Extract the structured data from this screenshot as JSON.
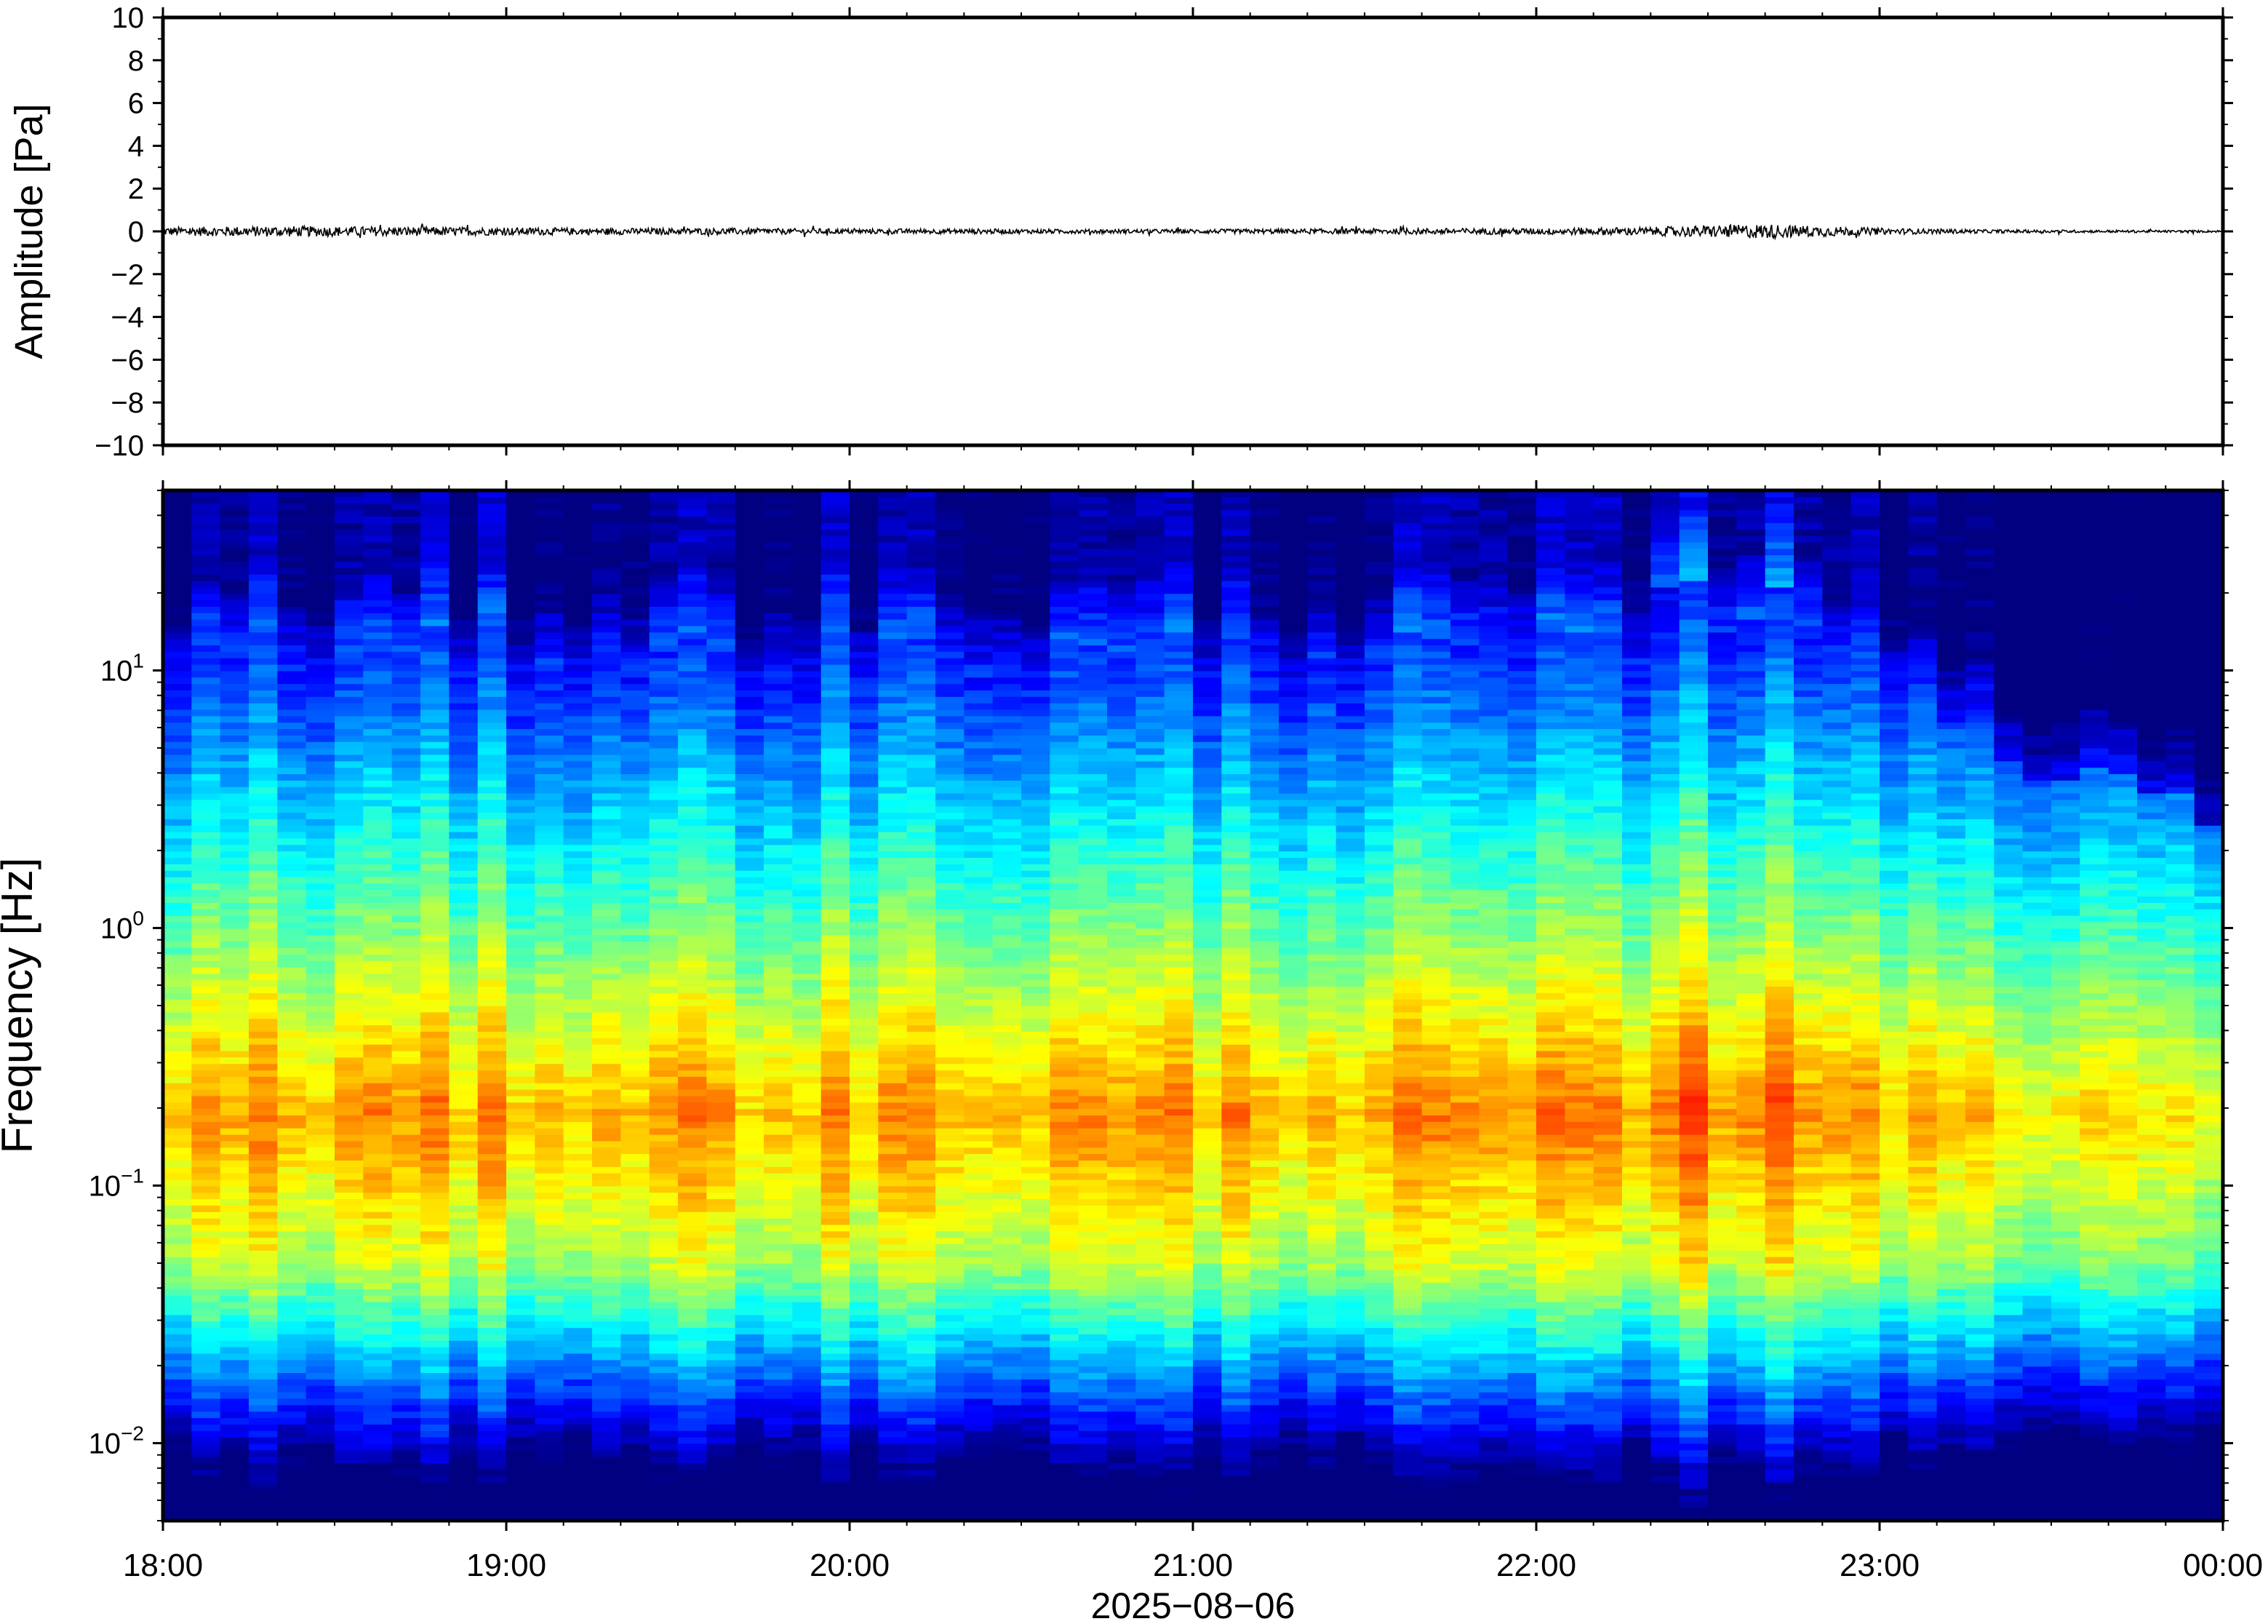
{
  "chart_data": [
    {
      "type": "line",
      "panel": "waveform",
      "ylabel": "Amplitude [Pa]",
      "ylim": [
        -10,
        10
      ],
      "yticks": [
        10,
        8,
        6,
        4,
        2,
        0,
        -2,
        -4,
        -6,
        -8,
        -10
      ],
      "ytick_labels": [
        "10",
        "8",
        "6",
        "4",
        "2",
        "0",
        "−2",
        "−4",
        "−6",
        "−8",
        "−10"
      ],
      "series": [
        {
          "x": [
            "18:00",
            "18:20",
            "18:40",
            "19:00",
            "19:20",
            "19:40",
            "20:00",
            "20:20",
            "20:40",
            "21:00",
            "21:20",
            "21:40",
            "22:00",
            "22:20",
            "22:40",
            "23:00",
            "23:20",
            "23:40",
            "00:00"
          ],
          "envelope": [
            0.2,
            0.25,
            0.22,
            0.18,
            0.15,
            0.15,
            0.12,
            0.12,
            0.1,
            0.1,
            0.12,
            0.14,
            0.15,
            0.2,
            0.35,
            0.15,
            0.08,
            0.06,
            0.05
          ],
          "color": "#000000"
        }
      ],
      "grid": false
    },
    {
      "type": "heatmap",
      "panel": "spectrogram",
      "ylabel": "Frequency [Hz]",
      "xlabel": "2025−08−06",
      "y_scale": "log",
      "ylim": [
        0.005,
        50
      ],
      "yticks": [
        10,
        1,
        0.1,
        0.01
      ],
      "ytick_labels": [
        {
          "base": "10",
          "exp": "1"
        },
        {
          "base": "10",
          "exp": "0"
        },
        {
          "base": "10",
          "exp": "−1"
        },
        {
          "base": "10",
          "exp": "−2"
        }
      ],
      "xticks": [
        "18:00",
        "19:00",
        "20:00",
        "21:00",
        "22:00",
        "23:00",
        "00:00"
      ],
      "colormap": "jet",
      "colors": [
        "#000080",
        "#0000ff",
        "#0080ff",
        "#00e0e0",
        "#80ff80",
        "#ffff00",
        "#ff8000"
      ],
      "peak_band_hz": [
        0.12,
        0.3
      ],
      "grid": false
    }
  ]
}
